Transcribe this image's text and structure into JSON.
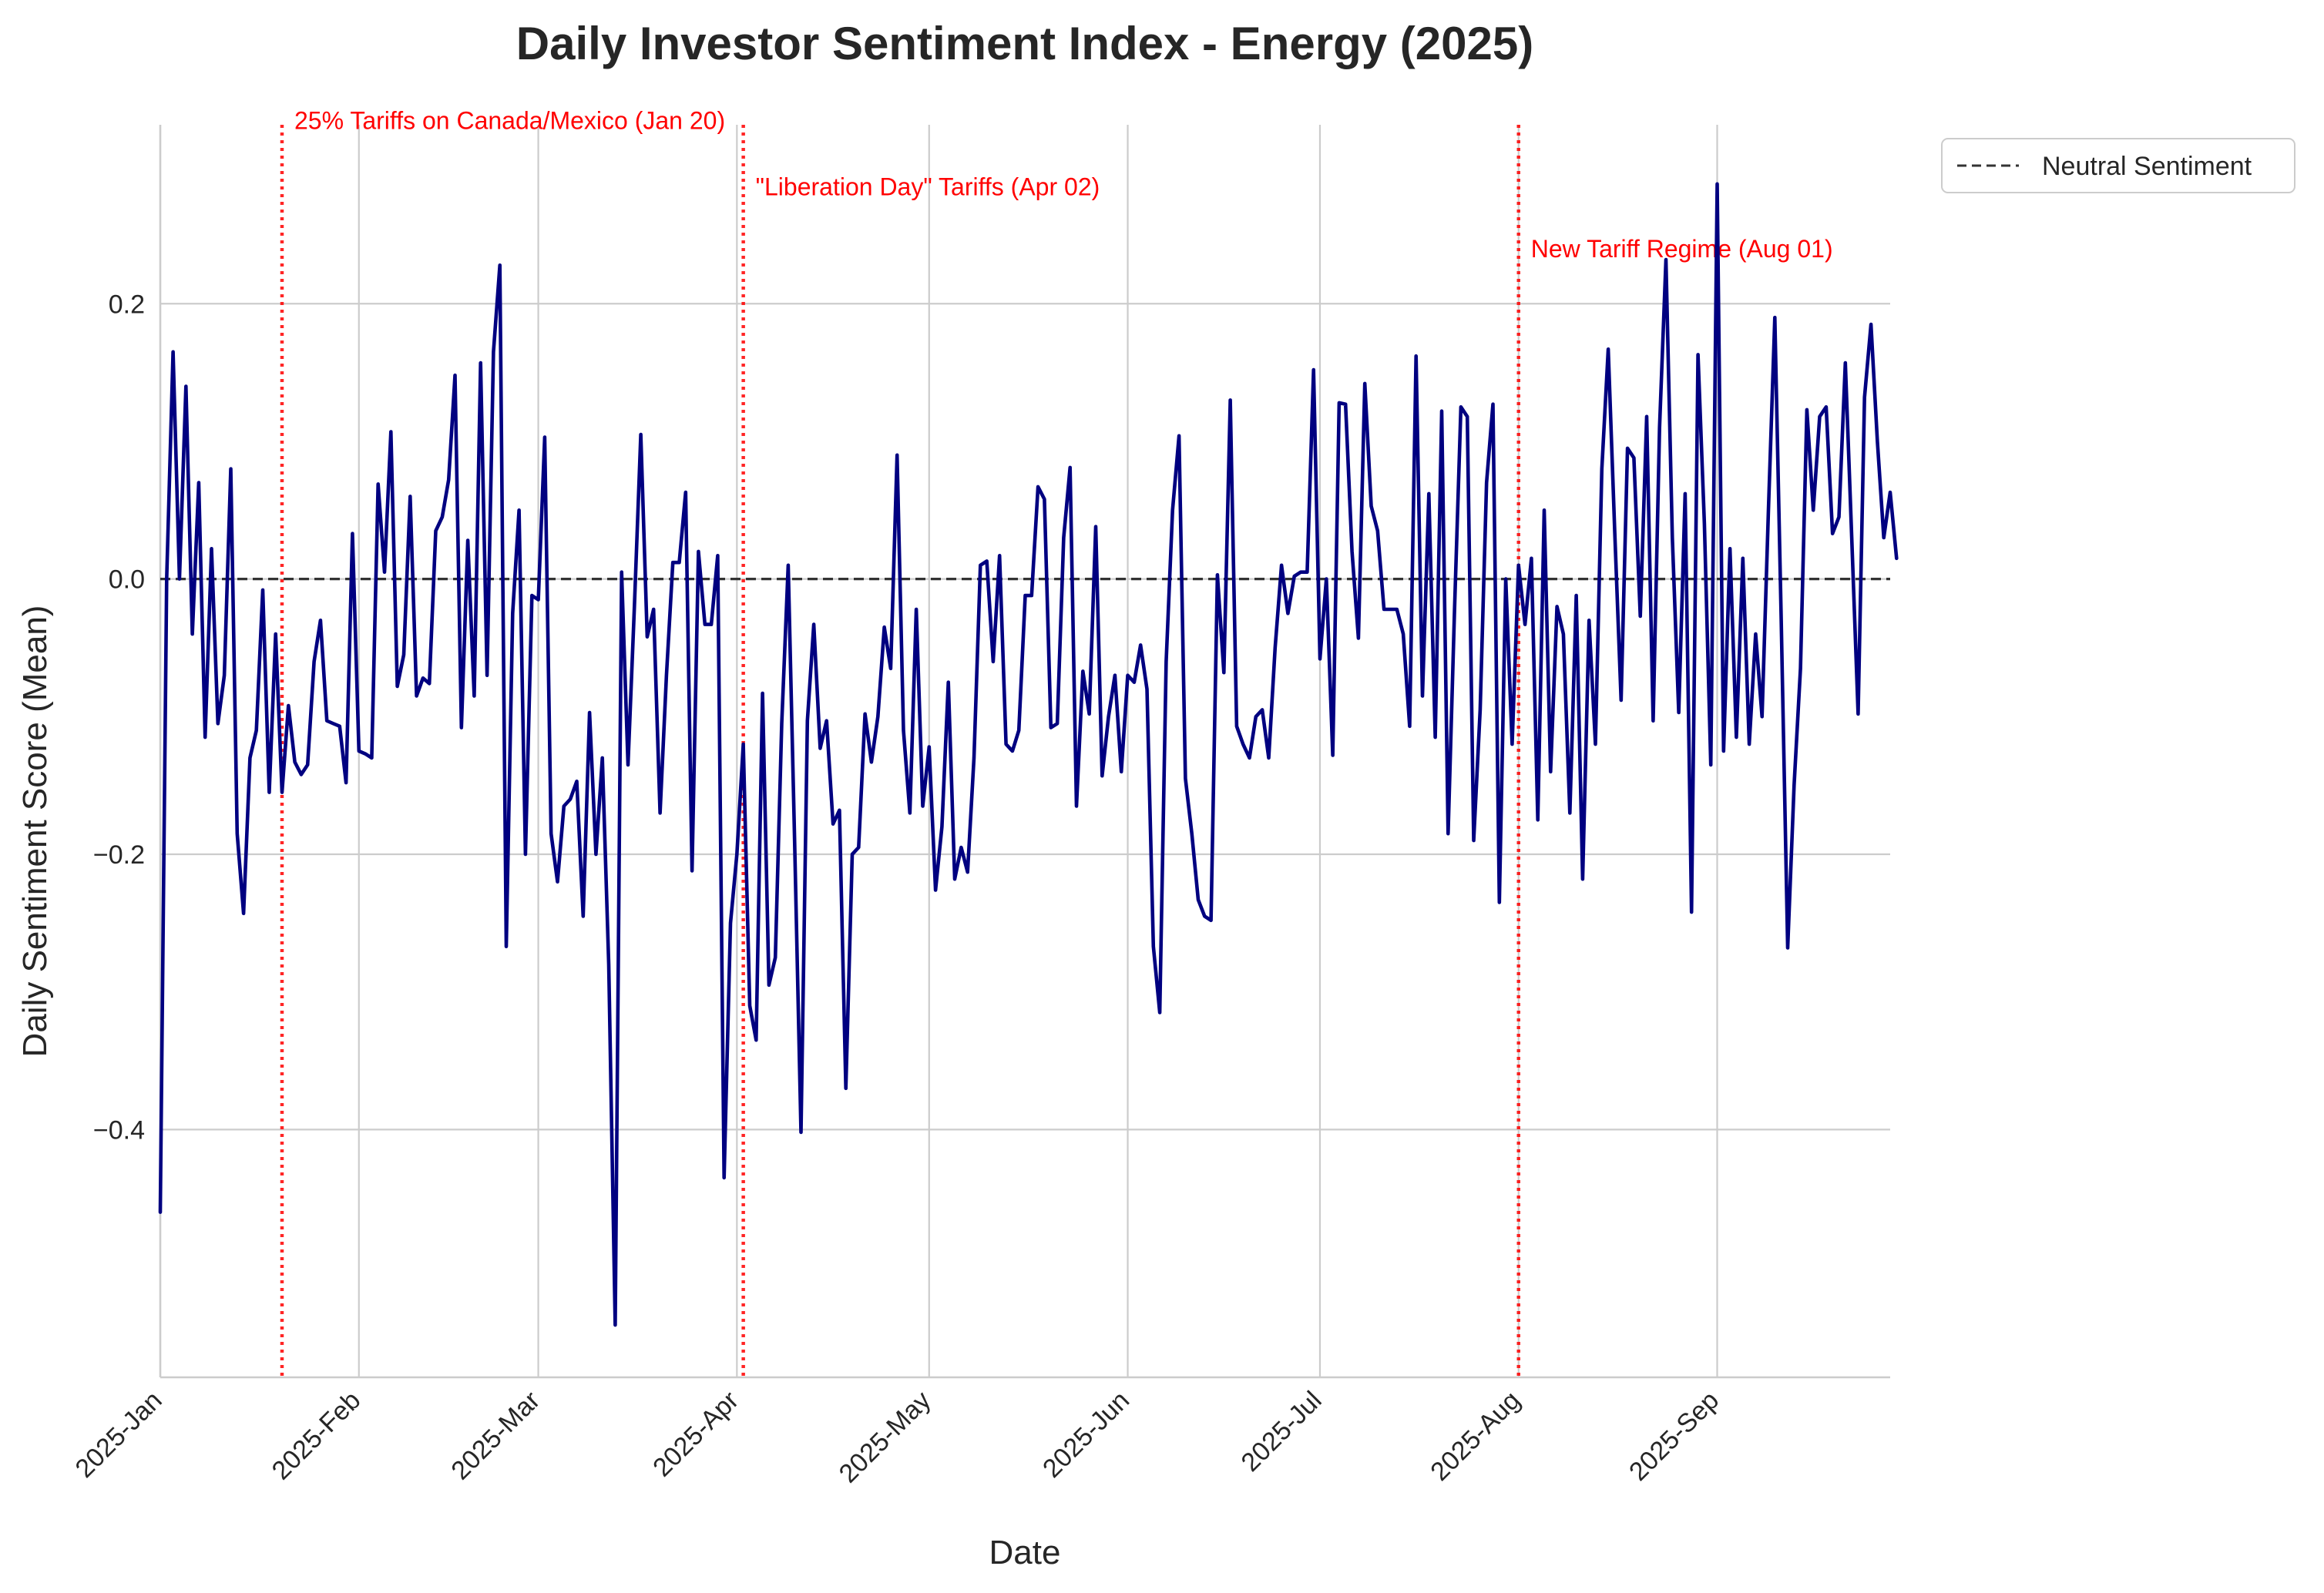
{
  "chart_data": {
    "type": "line",
    "title": "Daily Investor Sentiment Index - Energy (2025)",
    "xlabel": "Date",
    "ylabel": "Daily Sentiment Score (Mean)",
    "ylim": [
      -0.58,
      0.33
    ],
    "xlim": [
      "2025-01-01",
      "2025-09-28"
    ],
    "grid": true,
    "legend_placement": "outside upper right",
    "x_ticks": [
      "2025-Jan",
      "2025-Feb",
      "2025-Mar",
      "2025-Apr",
      "2025-May",
      "2025-Jun",
      "2025-Jul",
      "2025-Aug",
      "2025-Sep"
    ],
    "x_tick_dates": [
      "2025-01-01",
      "2025-02-01",
      "2025-03-01",
      "2025-04-01",
      "2025-05-01",
      "2025-06-01",
      "2025-07-01",
      "2025-08-01",
      "2025-09-01"
    ],
    "y_ticks": [
      -0.4,
      -0.2,
      0.0,
      0.2
    ],
    "y_tick_labels": [
      "−0.4",
      "−0.2",
      "0.0",
      "0.2"
    ],
    "series": [
      {
        "color": "#000080",
        "x_start": "2025-01-01",
        "values": [
          -0.46,
          0.0,
          0.165,
          0.0,
          0.14,
          -0.04,
          0.07,
          -0.115,
          0.022,
          -0.105,
          -0.07,
          0.08,
          -0.185,
          -0.243,
          -0.13,
          -0.11,
          -0.008,
          -0.155,
          -0.04,
          -0.155,
          -0.092,
          -0.133,
          -0.142,
          -0.135,
          -0.06,
          -0.03,
          -0.103,
          -0.105,
          -0.107,
          -0.148,
          0.033,
          -0.125,
          -0.127,
          -0.13,
          0.069,
          0.005,
          0.107,
          -0.078,
          -0.055,
          0.06,
          -0.085,
          -0.072,
          -0.076,
          0.035,
          0.045,
          0.072,
          0.148,
          -0.108,
          0.028,
          -0.085,
          0.157,
          -0.07,
          0.165,
          0.228,
          -0.267,
          -0.025,
          0.05,
          -0.2,
          -0.012,
          -0.015,
          0.103,
          -0.185,
          -0.22,
          -0.165,
          -0.16,
          -0.147,
          -0.245,
          -0.097,
          -0.2,
          -0.13,
          -0.28,
          -0.542,
          0.005,
          -0.135,
          -0.02,
          0.105,
          -0.042,
          -0.022,
          -0.17,
          -0.07,
          0.012,
          0.012,
          0.063,
          -0.212,
          0.02,
          -0.033,
          -0.033,
          0.017,
          -0.435,
          -0.25,
          -0.2,
          -0.12,
          -0.31,
          -0.335,
          -0.083,
          -0.295,
          -0.275,
          -0.105,
          0.01,
          -0.19,
          -0.402,
          -0.103,
          -0.033,
          -0.123,
          -0.103,
          -0.178,
          -0.168,
          -0.37,
          -0.2,
          -0.195,
          -0.098,
          -0.133,
          -0.1,
          -0.035,
          -0.065,
          0.09,
          -0.11,
          -0.17,
          -0.022,
          -0.165,
          -0.122,
          -0.226,
          -0.18,
          -0.075,
          -0.218,
          -0.195,
          -0.213,
          -0.13,
          0.01,
          0.013,
          -0.06,
          0.017,
          -0.12,
          -0.125,
          -0.11,
          -0.012,
          -0.012,
          0.067,
          0.058,
          -0.108,
          -0.105,
          0.03,
          0.081,
          -0.165,
          -0.067,
          -0.098,
          0.038,
          -0.143,
          -0.1,
          -0.07,
          -0.14,
          -0.07,
          -0.075,
          -0.048,
          -0.08,
          -0.267,
          -0.315,
          -0.06,
          0.05,
          0.104,
          -0.145,
          -0.185,
          -0.233,
          -0.245,
          -0.248,
          0.003,
          -0.068,
          0.13,
          -0.107,
          -0.12,
          -0.13,
          -0.1,
          -0.095,
          -0.13,
          -0.05,
          0.01,
          -0.025,
          0.002,
          0.005,
          0.005,
          0.152,
          -0.058,
          0.0,
          -0.128,
          0.128,
          0.127,
          0.02,
          -0.043,
          0.142,
          0.053,
          0.035,
          -0.022,
          -0.022,
          -0.022,
          -0.04,
          -0.107,
          0.162,
          -0.085,
          0.062,
          -0.115,
          0.122,
          -0.185,
          -0.023,
          0.125,
          0.118,
          -0.19,
          -0.095,
          0.07,
          0.127,
          -0.235,
          0.0,
          -0.12,
          0.01,
          -0.033,
          0.015,
          -0.175,
          0.05,
          -0.14,
          -0.02,
          -0.04,
          -0.17,
          -0.012,
          -0.218,
          -0.03,
          -0.12,
          0.08,
          0.167,
          0.035,
          -0.088,
          0.095,
          0.088,
          -0.027,
          0.118,
          -0.103,
          0.11,
          0.232,
          0.03,
          -0.097,
          0.062,
          -0.242,
          0.163,
          0.04,
          -0.135,
          0.287,
          -0.125,
          0.022,
          -0.115,
          0.015,
          -0.12,
          -0.04,
          -0.1,
          0.05,
          0.19,
          -0.03,
          -0.268,
          -0.15,
          -0.065,
          0.123,
          0.05,
          0.118,
          0.125,
          0.033,
          0.045,
          0.157,
          0.03,
          -0.098,
          0.132,
          0.185,
          0.1,
          0.03,
          0.063,
          0.015
        ]
      }
    ],
    "reference_line": {
      "y": 0.0,
      "label": "Neutral Sentiment",
      "color": "#333333",
      "style": "dashed"
    },
    "event_lines": [
      {
        "date": "2025-01-20",
        "label": "25% Tariffs on Canada/Mexico (Jan 20)",
        "label_y": 0.333,
        "color": "#ff0000"
      },
      {
        "date": "2025-04-02",
        "label": "\"Liberation Day\" Tariffs (Apr 02)",
        "label_y": 0.285,
        "color": "#ff0000"
      },
      {
        "date": "2025-08-01",
        "label": "New Tariff Regime (Aug 01)",
        "label_y": 0.24,
        "color": "#ff0000"
      }
    ]
  }
}
